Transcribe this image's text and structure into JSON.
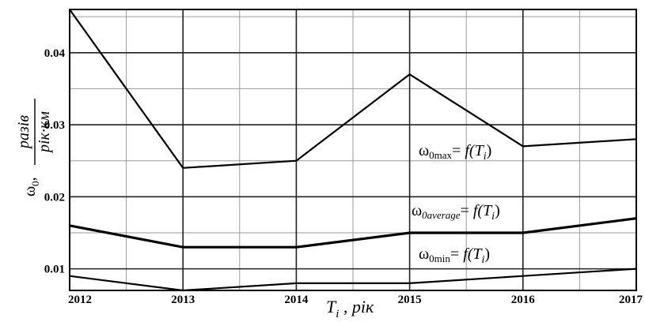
{
  "chart_data": {
    "type": "line",
    "x": [
      2012,
      2013,
      2014,
      2015,
      2016,
      2017
    ],
    "series": [
      {
        "name": "ω0max = f(Ti)",
        "values": [
          0.046,
          0.024,
          0.025,
          0.037,
          0.027,
          0.028
        ]
      },
      {
        "name": "ω0average = f(Ti)",
        "values": [
          0.016,
          0.013,
          0.013,
          0.015,
          0.015,
          0.017
        ]
      },
      {
        "name": "ω0min = f(Ti)",
        "values": [
          0.009,
          0.007,
          0.008,
          0.008,
          0.009,
          0.01
        ]
      }
    ],
    "xticks": [
      "2012",
      "2013",
      "2014",
      "2015",
      "2016",
      "2017"
    ],
    "yticks": [
      "0.01",
      "0.02",
      "0.03",
      "0.04"
    ],
    "ytick_values": [
      0.01,
      0.02,
      0.03,
      0.04
    ],
    "xlim": [
      2012,
      2017
    ],
    "ylim": [
      0.007,
      0.046
    ],
    "grid": true,
    "xlabel": {
      "main": "T",
      "sub": "i",
      "unit": " , рік"
    },
    "ylabel": {
      "symbol": "ω",
      "sub": "0",
      "sep": ",",
      "numerator": "разів",
      "denominator": "рік·км"
    },
    "annotations": [
      {
        "base": "ω",
        "sub": "0max",
        "rest": "= f(T",
        "sub2": "i",
        "close": ")"
      },
      {
        "base": "ω",
        "sub": "0average",
        "rest": "= f(T",
        "sub2": "i",
        "close": ")"
      },
      {
        "base": "ω",
        "sub": "0min",
        "rest": "= f(T",
        "sub2": "i",
        "close": ")"
      }
    ]
  }
}
